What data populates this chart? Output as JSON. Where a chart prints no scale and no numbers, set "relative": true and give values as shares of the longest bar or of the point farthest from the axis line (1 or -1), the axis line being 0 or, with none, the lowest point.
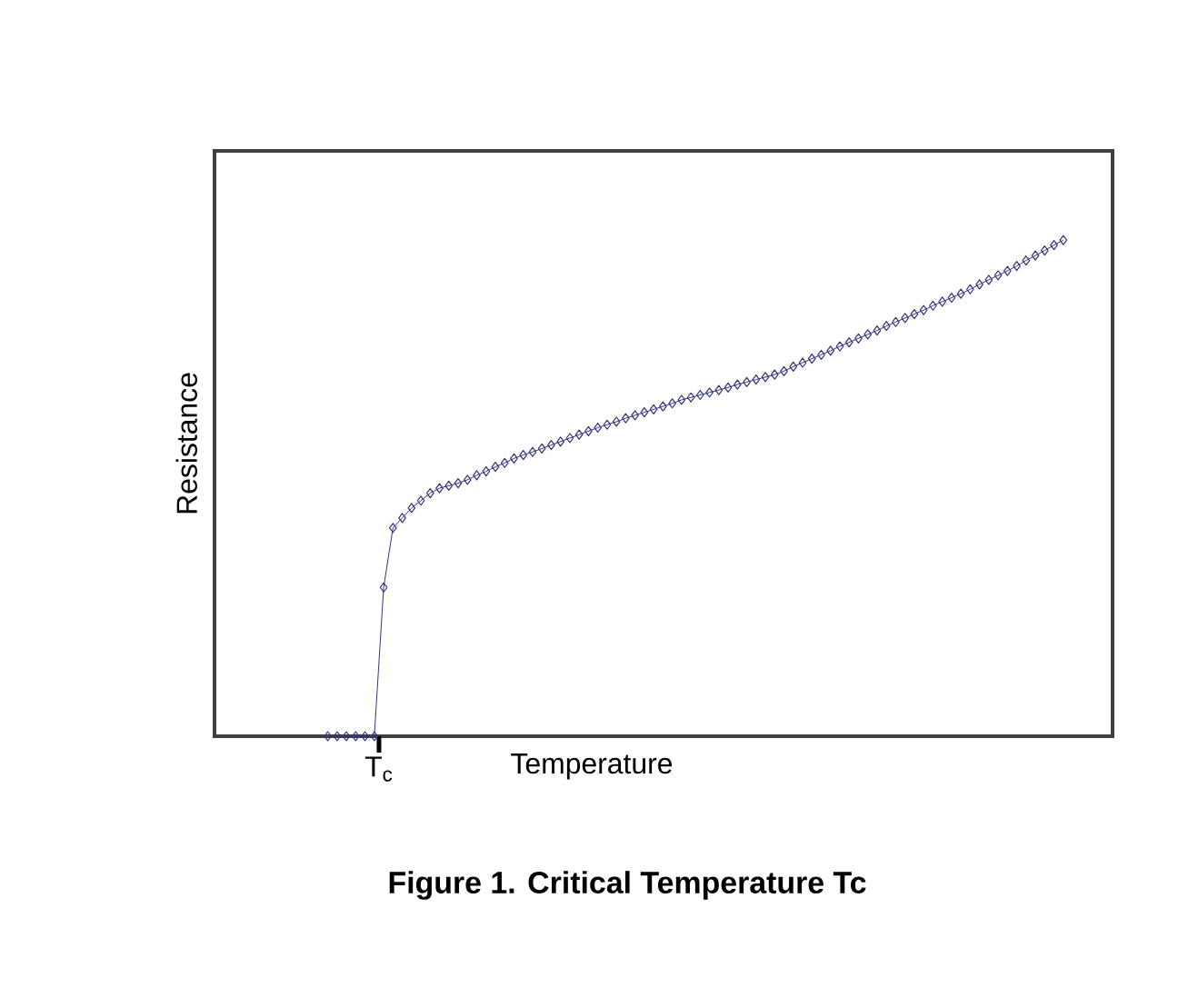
{
  "chart_data": {
    "type": "line",
    "relative": true,
    "marker": "diamond",
    "xlabel": "Temperature",
    "ylabel": "Resistance",
    "annotations": [
      "T$_{c}$",
      "Figure 1. Critical Temperature Tc"
    ],
    "categories": [
      null,
      null,
      null,
      null,
      null,
      null,
      null,
      null,
      null,
      null,
      null,
      null,
      null,
      null,
      null,
      null,
      null,
      null,
      null,
      null,
      null,
      null,
      null,
      null,
      null,
      null,
      null,
      null,
      null,
      null,
      null,
      null,
      null,
      null,
      null,
      null,
      null,
      null,
      null,
      null,
      null,
      null,
      null,
      null,
      null,
      null,
      null,
      null,
      null,
      null,
      null,
      null,
      null,
      null,
      null,
      null,
      null,
      null,
      null,
      null,
      null,
      null,
      null,
      null,
      null,
      null,
      null,
      null,
      null,
      null,
      null,
      null,
      null,
      null,
      null,
      null,
      null,
      null,
      null,
      null
    ],
    "series": [
      {
        "color": "#33337a",
        "values": [
          0,
          0,
          0,
          0,
          0,
          0,
          0.3,
          0.42,
          0.44,
          0.46,
          0.475,
          0.49,
          0.5,
          0.505,
          0.51,
          0.517,
          0.526,
          0.534,
          0.543,
          0.551,
          0.56,
          0.567,
          0.573,
          0.58,
          0.587,
          0.594,
          0.601,
          0.608,
          0.615,
          0.622,
          0.628,
          0.634,
          0.641,
          0.647,
          0.653,
          0.659,
          0.665,
          0.671,
          0.678,
          0.683,
          0.688,
          0.693,
          0.698,
          0.703,
          0.709,
          0.714,
          0.719,
          0.724,
          0.729,
          0.736,
          0.745,
          0.753,
          0.761,
          0.769,
          0.777,
          0.786,
          0.794,
          0.802,
          0.81,
          0.818,
          0.827,
          0.835,
          0.843,
          0.851,
          0.859,
          0.868,
          0.876,
          0.884,
          0.892,
          0.901,
          0.911,
          0.92,
          0.929,
          0.938,
          0.948,
          0.959,
          0.969,
          0.979,
          0.99,
          1
        ]
      }
    ]
  }
}
